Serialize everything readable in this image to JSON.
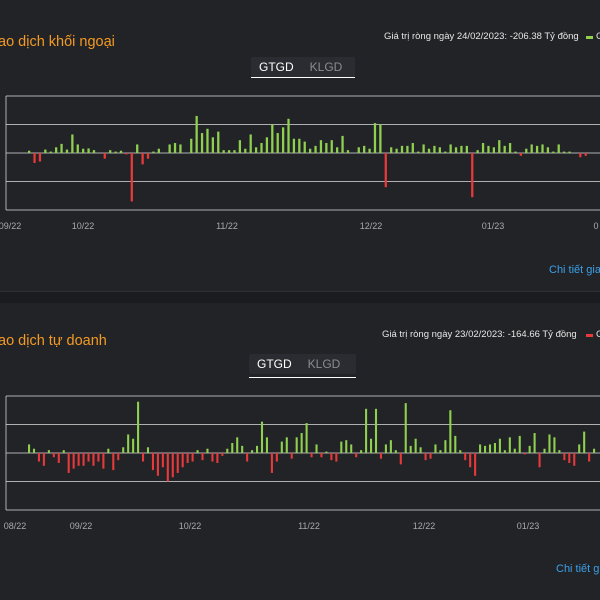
{
  "panels": [
    {
      "title": "ao dịch khối ngoại",
      "summary": "Giá trị ròng ngày 24/02/2023: -206.38 Tỷ đồng",
      "legend_label": "G",
      "tabs": [
        "GTGD",
        "KLGD"
      ],
      "detail_link": "Chi tiết gia",
      "x_labels": [
        "09/22",
        "10/22",
        "11/22",
        "12/22",
        "01/23",
        "0"
      ],
      "colors": {
        "positive": "#8fd14f",
        "negative": "#e8393b",
        "grid": "#c8c8c8"
      },
      "values": [
        0.08,
        -0.35,
        -0.3,
        0.12,
        0.05,
        0.2,
        0.32,
        0.12,
        0.65,
        0.3,
        0.15,
        0.16,
        0.1,
        0,
        -0.2,
        0.1,
        0.05,
        0.08,
        -0.05,
        -1.7,
        0.3,
        -0.4,
        -0.2,
        0.05,
        0.15,
        0,
        0.3,
        0.35,
        0.3,
        0,
        0.5,
        1.3,
        0.7,
        0.85,
        0.55,
        0.75,
        0.1,
        0.1,
        0.1,
        0.45,
        0.15,
        0.65,
        0.2,
        0.35,
        0.55,
        1,
        0.7,
        0.9,
        1.2,
        0.5,
        0.5,
        0.4,
        0.15,
        0.25,
        0.45,
        0.35,
        0.45,
        0.2,
        0.6,
        0.1,
        0,
        0.2,
        0.25,
        0.15,
        1.05,
        1,
        -1.2,
        0.2,
        0.15,
        0.25,
        0.25,
        0.35,
        0.05,
        0.3,
        0.15,
        0.25,
        0.2,
        0.05,
        0.3,
        0.2,
        0.25,
        0.25,
        -1.55,
        0.1,
        0.35,
        0.25,
        0.2,
        0.45,
        0.25,
        0.35,
        0.05,
        -0.1,
        0.15,
        0.3,
        0.25,
        0.3,
        0.2,
        0.05,
        0.3,
        0.05,
        0.05,
        0,
        -0.15,
        -0.1
      ]
    },
    {
      "title": "ao dịch tự doanh",
      "summary": "Giá trị ròng ngày 23/02/2023: -164.66 Tỷ đồng",
      "legend_label": "G",
      "tabs": [
        "GTGD",
        "KLGD"
      ],
      "detail_link": "Chi tiết gia",
      "x_labels": [
        "08/22",
        "09/22",
        "10/22",
        "11/22",
        "12/22",
        "01/23"
      ],
      "colors": {
        "positive": "#8fd14f",
        "negative": "#e8393b",
        "grid": "#c8c8c8"
      },
      "values": [
        0.3,
        0.15,
        -0.3,
        -0.45,
        0.1,
        -0.15,
        -0.35,
        0.1,
        -0.7,
        -0.55,
        -0.45,
        -0.45,
        -0.3,
        -0.45,
        -0.3,
        -0.55,
        0.15,
        -0.6,
        -0.25,
        0.2,
        0.65,
        0.5,
        1.8,
        -0.3,
        0.2,
        -0.6,
        -0.8,
        -0.5,
        -1,
        -0.85,
        -0.7,
        -0.5,
        -0.35,
        -0.3,
        0.1,
        -0.25,
        0.15,
        -0.3,
        -0.35,
        -0.1,
        0.15,
        0.35,
        0.55,
        0.25,
        -0.3,
        0.1,
        0.25,
        1.1,
        0.55,
        -0.7,
        -0.3,
        0.4,
        0.55,
        -0.2,
        0.55,
        0.7,
        1.05,
        -0.15,
        0.3,
        -0.15,
        0.05,
        -0.25,
        -0.3,
        0.4,
        0.45,
        0.3,
        -0.15,
        0.1,
        1.55,
        0.5,
        1.55,
        -0.2,
        0.3,
        0.45,
        0.1,
        -0.4,
        1.75,
        0.25,
        0.5,
        0.2,
        -0.25,
        -0.2,
        0.3,
        0.1,
        0.45,
        1.5,
        0.6,
        0.1,
        -0.25,
        -0.5,
        -0.8,
        0.3,
        0.25,
        0.3,
        0.35,
        0.5,
        0.1,
        0.55,
        0.15,
        0.6,
        -0.05,
        0.25,
        0.7,
        -0.5,
        0.15,
        0.65,
        0.55,
        0.1,
        -0.25,
        -0.35,
        -0.45,
        0.3,
        0.75,
        -0.3,
        0.15
      ]
    }
  ]
}
